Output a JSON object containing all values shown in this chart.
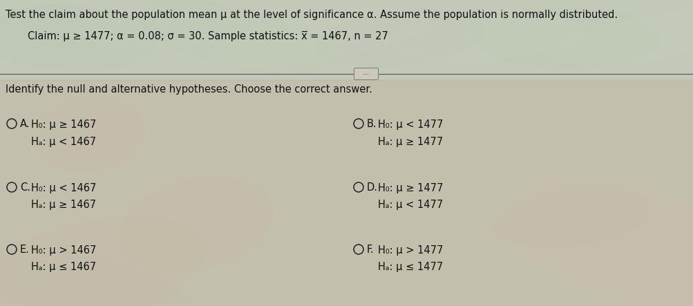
{
  "title": "Test the claim about the population mean μ at the level of significance α. Assume the population is normally distributed.",
  "claim_line": "Claim: μ ≥ 1477; α = 0.08; σ = 30. Sample statistics: x̅ = 1467, n = 27",
  "instruction": "Identify the null and alternative hypotheses. Choose the correct answer.",
  "bg_color_top": "#b8c4b0",
  "bg_color_main": "#bfbcaa",
  "text_color": "#111111",
  "circle_color": "#222222",
  "separator_color": "#555555",
  "font_size_title": 10.5,
  "font_size_claim": 10.5,
  "font_size_instruction": 10.5,
  "font_size_options": 10.5,
  "options": [
    {
      "label": "A.",
      "h0": "H₀: μ ≥ 1467",
      "ha": "Hₐ: μ < 1467",
      "col": 0,
      "row": 0
    },
    {
      "label": "B.",
      "h0": "H₀: μ < 1477",
      "ha": "Hₐ: μ ≥ 1477",
      "col": 1,
      "row": 0
    },
    {
      "label": "C.",
      "h0": "H₀: μ < 1467",
      "ha": "Hₐ: μ ≥ 1467",
      "col": 0,
      "row": 1
    },
    {
      "label": "D.",
      "h0": "H₀: μ ≥ 1477",
      "ha": "Hₐ: μ < 1477",
      "col": 1,
      "row": 1
    },
    {
      "label": "E.",
      "h0": "H₀: μ > 1467",
      "ha": "Hₐ: μ ≤ 1467",
      "col": 0,
      "row": 2
    },
    {
      "label": "F.",
      "h0": "H₀: μ > 1477",
      "ha": "Hₐ: μ ≤ 1477",
      "col": 1,
      "row": 2
    }
  ]
}
